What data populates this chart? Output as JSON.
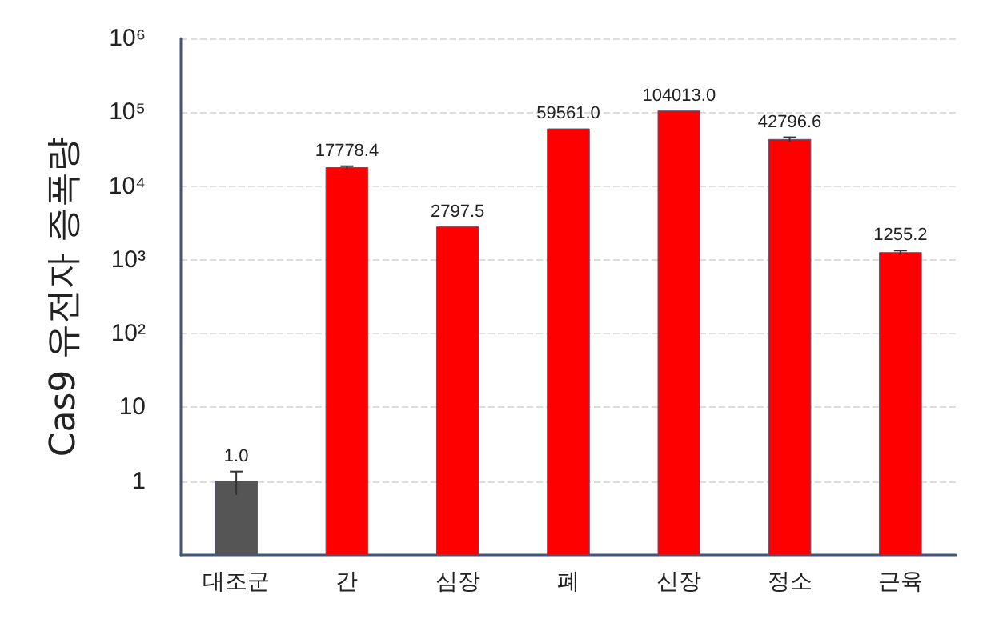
{
  "chart_data": {
    "type": "bar",
    "ylabel": "Cas9 유전자 증폭량",
    "categories": [
      "대조군",
      "간",
      "심장",
      "폐",
      "신장",
      "정소",
      "근육"
    ],
    "values": [
      1.0,
      17778.4,
      2797.5,
      59561.0,
      104013.0,
      42796.6,
      1255.2
    ],
    "value_labels": [
      "1.0",
      "17778.4",
      "2797.5",
      "59561.0",
      "104013.0",
      "42796.6",
      "1255.2"
    ],
    "colors": [
      "#555555",
      "#ff0000",
      "#ff0000",
      "#ff0000",
      "#ff0000",
      "#ff0000",
      "#ff0000"
    ],
    "errors": [
      0.35,
      800,
      null,
      null,
      null,
      3000,
      80
    ],
    "log": "y",
    "ylim": [
      0.1,
      1000000
    ],
    "yticks": [
      1,
      10,
      {
        "value": 100,
        "label": "10²"
      },
      {
        "value": 1000,
        "label": "10³"
      },
      {
        "value": 10000,
        "label": "10⁴"
      },
      {
        "value": 100000,
        "label": "10⁵"
      },
      {
        "value": 1000000,
        "label": "10⁶"
      }
    ],
    "grid": "y"
  }
}
